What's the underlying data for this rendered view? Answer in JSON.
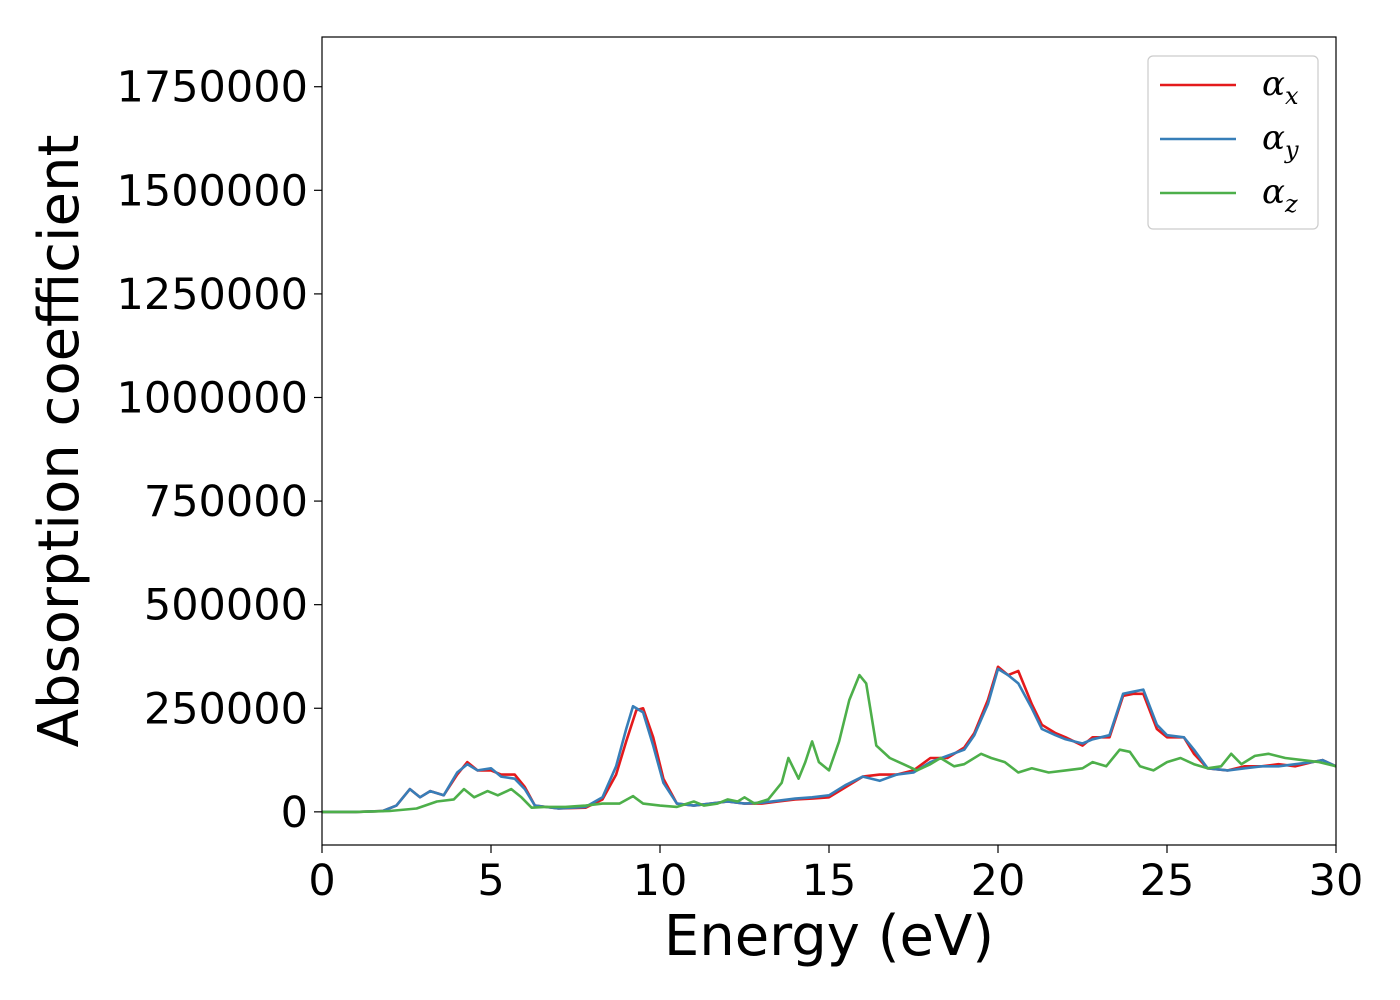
{
  "chart_data": {
    "type": "line",
    "title": "",
    "xlabel": "Energy (eV)",
    "ylabel": "Absorption coefficient",
    "xlim": [
      0,
      30
    ],
    "ylim": [
      -80000,
      1870000
    ],
    "x_ticks": [
      0,
      5,
      10,
      15,
      20,
      25,
      30
    ],
    "y_ticks": [
      0,
      250000,
      500000,
      750000,
      1000000,
      1250000,
      1500000,
      1750000
    ],
    "grid": false,
    "legend_position": "top-right",
    "series": [
      {
        "name": "αx",
        "label_base": "α",
        "label_sub": "x",
        "color": "#e41a1c",
        "points": [
          [
            0,
            0
          ],
          [
            1,
            0
          ],
          [
            1.8,
            2000
          ],
          [
            2.2,
            15000
          ],
          [
            2.6,
            55000
          ],
          [
            2.9,
            35000
          ],
          [
            3.2,
            50000
          ],
          [
            3.6,
            40000
          ],
          [
            4.0,
            90000
          ],
          [
            4.3,
            120000
          ],
          [
            4.6,
            100000
          ],
          [
            5.0,
            100000
          ],
          [
            5.3,
            90000
          ],
          [
            5.7,
            90000
          ],
          [
            6.0,
            60000
          ],
          [
            6.3,
            15000
          ],
          [
            7.0,
            8000
          ],
          [
            7.8,
            10000
          ],
          [
            8.3,
            30000
          ],
          [
            8.7,
            90000
          ],
          [
            9.0,
            170000
          ],
          [
            9.3,
            245000
          ],
          [
            9.5,
            250000
          ],
          [
            9.8,
            180000
          ],
          [
            10.1,
            80000
          ],
          [
            10.5,
            20000
          ],
          [
            11.0,
            15000
          ],
          [
            11.5,
            20000
          ],
          [
            12.0,
            25000
          ],
          [
            12.5,
            20000
          ],
          [
            13.0,
            20000
          ],
          [
            13.5,
            25000
          ],
          [
            14.0,
            30000
          ],
          [
            14.5,
            32000
          ],
          [
            15.0,
            35000
          ],
          [
            15.5,
            60000
          ],
          [
            16.0,
            85000
          ],
          [
            16.5,
            90000
          ],
          [
            17.0,
            90000
          ],
          [
            17.5,
            100000
          ],
          [
            18.0,
            130000
          ],
          [
            18.5,
            130000
          ],
          [
            19.0,
            155000
          ],
          [
            19.3,
            190000
          ],
          [
            19.7,
            270000
          ],
          [
            20.0,
            350000
          ],
          [
            20.3,
            330000
          ],
          [
            20.6,
            340000
          ],
          [
            21.0,
            260000
          ],
          [
            21.3,
            210000
          ],
          [
            21.7,
            190000
          ],
          [
            22.0,
            180000
          ],
          [
            22.5,
            160000
          ],
          [
            22.8,
            180000
          ],
          [
            23.3,
            180000
          ],
          [
            23.7,
            280000
          ],
          [
            24.0,
            285000
          ],
          [
            24.3,
            285000
          ],
          [
            24.7,
            200000
          ],
          [
            25.0,
            180000
          ],
          [
            25.5,
            180000
          ],
          [
            25.8,
            140000
          ],
          [
            26.2,
            105000
          ],
          [
            26.8,
            100000
          ],
          [
            27.3,
            110000
          ],
          [
            27.8,
            110000
          ],
          [
            28.3,
            115000
          ],
          [
            28.8,
            110000
          ],
          [
            29.3,
            120000
          ],
          [
            29.6,
            125000
          ],
          [
            30.0,
            110000
          ]
        ]
      },
      {
        "name": "αy",
        "label_base": "α",
        "label_sub": "y",
        "color": "#377eb8",
        "points": [
          [
            0,
            0
          ],
          [
            1,
            0
          ],
          [
            1.8,
            2000
          ],
          [
            2.2,
            15000
          ],
          [
            2.6,
            55000
          ],
          [
            2.9,
            35000
          ],
          [
            3.2,
            50000
          ],
          [
            3.6,
            40000
          ],
          [
            4.0,
            95000
          ],
          [
            4.3,
            115000
          ],
          [
            4.6,
            100000
          ],
          [
            5.0,
            105000
          ],
          [
            5.3,
            85000
          ],
          [
            5.7,
            80000
          ],
          [
            6.0,
            55000
          ],
          [
            6.3,
            15000
          ],
          [
            7.0,
            8000
          ],
          [
            7.8,
            12000
          ],
          [
            8.3,
            35000
          ],
          [
            8.7,
            110000
          ],
          [
            9.0,
            200000
          ],
          [
            9.2,
            255000
          ],
          [
            9.5,
            240000
          ],
          [
            9.8,
            160000
          ],
          [
            10.1,
            70000
          ],
          [
            10.5,
            20000
          ],
          [
            11.0,
            15000
          ],
          [
            11.5,
            20000
          ],
          [
            12.0,
            25000
          ],
          [
            12.5,
            20000
          ],
          [
            13.0,
            22000
          ],
          [
            13.5,
            27000
          ],
          [
            14.0,
            32000
          ],
          [
            14.5,
            35000
          ],
          [
            15.0,
            40000
          ],
          [
            15.5,
            65000
          ],
          [
            16.0,
            85000
          ],
          [
            16.5,
            75000
          ],
          [
            17.0,
            90000
          ],
          [
            17.5,
            95000
          ],
          [
            18.0,
            120000
          ],
          [
            18.5,
            135000
          ],
          [
            19.0,
            150000
          ],
          [
            19.3,
            185000
          ],
          [
            19.7,
            260000
          ],
          [
            20.0,
            345000
          ],
          [
            20.3,
            330000
          ],
          [
            20.6,
            310000
          ],
          [
            21.0,
            250000
          ],
          [
            21.3,
            200000
          ],
          [
            21.7,
            185000
          ],
          [
            22.0,
            175000
          ],
          [
            22.5,
            165000
          ],
          [
            22.8,
            175000
          ],
          [
            23.3,
            185000
          ],
          [
            23.7,
            285000
          ],
          [
            24.0,
            290000
          ],
          [
            24.3,
            295000
          ],
          [
            24.7,
            210000
          ],
          [
            25.0,
            185000
          ],
          [
            25.5,
            180000
          ],
          [
            25.8,
            150000
          ],
          [
            26.2,
            105000
          ],
          [
            26.8,
            100000
          ],
          [
            27.3,
            105000
          ],
          [
            27.8,
            110000
          ],
          [
            28.3,
            110000
          ],
          [
            28.8,
            115000
          ],
          [
            29.3,
            120000
          ],
          [
            29.6,
            125000
          ],
          [
            30.0,
            110000
          ]
        ]
      },
      {
        "name": "αz",
        "label_base": "α",
        "label_sub": "z",
        "color": "#4daf4a",
        "points": [
          [
            0,
            0
          ],
          [
            1,
            0
          ],
          [
            2.0,
            2000
          ],
          [
            2.8,
            8000
          ],
          [
            3.4,
            25000
          ],
          [
            3.9,
            30000
          ],
          [
            4.2,
            55000
          ],
          [
            4.5,
            35000
          ],
          [
            4.9,
            50000
          ],
          [
            5.2,
            40000
          ],
          [
            5.6,
            55000
          ],
          [
            5.9,
            35000
          ],
          [
            6.2,
            10000
          ],
          [
            6.6,
            12000
          ],
          [
            7.2,
            12000
          ],
          [
            7.8,
            15000
          ],
          [
            8.3,
            20000
          ],
          [
            8.8,
            20000
          ],
          [
            9.2,
            38000
          ],
          [
            9.5,
            20000
          ],
          [
            10.0,
            15000
          ],
          [
            10.5,
            12000
          ],
          [
            11.0,
            25000
          ],
          [
            11.3,
            15000
          ],
          [
            11.7,
            20000
          ],
          [
            12.0,
            30000
          ],
          [
            12.3,
            25000
          ],
          [
            12.5,
            35000
          ],
          [
            12.8,
            20000
          ],
          [
            13.2,
            30000
          ],
          [
            13.6,
            70000
          ],
          [
            13.8,
            130000
          ],
          [
            14.1,
            80000
          ],
          [
            14.3,
            120000
          ],
          [
            14.5,
            170000
          ],
          [
            14.7,
            120000
          ],
          [
            15.0,
            100000
          ],
          [
            15.3,
            170000
          ],
          [
            15.6,
            270000
          ],
          [
            15.9,
            330000
          ],
          [
            16.1,
            310000
          ],
          [
            16.4,
            160000
          ],
          [
            16.8,
            130000
          ],
          [
            17.2,
            115000
          ],
          [
            17.6,
            100000
          ],
          [
            18.0,
            115000
          ],
          [
            18.3,
            130000
          ],
          [
            18.7,
            110000
          ],
          [
            19.0,
            115000
          ],
          [
            19.5,
            140000
          ],
          [
            19.8,
            130000
          ],
          [
            20.2,
            120000
          ],
          [
            20.6,
            95000
          ],
          [
            21.0,
            105000
          ],
          [
            21.5,
            95000
          ],
          [
            22.0,
            100000
          ],
          [
            22.5,
            105000
          ],
          [
            22.8,
            120000
          ],
          [
            23.2,
            110000
          ],
          [
            23.6,
            150000
          ],
          [
            23.9,
            145000
          ],
          [
            24.2,
            110000
          ],
          [
            24.6,
            100000
          ],
          [
            25.0,
            120000
          ],
          [
            25.4,
            130000
          ],
          [
            25.8,
            115000
          ],
          [
            26.2,
            105000
          ],
          [
            26.6,
            110000
          ],
          [
            26.9,
            140000
          ],
          [
            27.2,
            115000
          ],
          [
            27.6,
            135000
          ],
          [
            28.0,
            140000
          ],
          [
            28.5,
            130000
          ],
          [
            29.0,
            125000
          ],
          [
            29.5,
            120000
          ],
          [
            30.0,
            110000
          ]
        ]
      }
    ]
  }
}
